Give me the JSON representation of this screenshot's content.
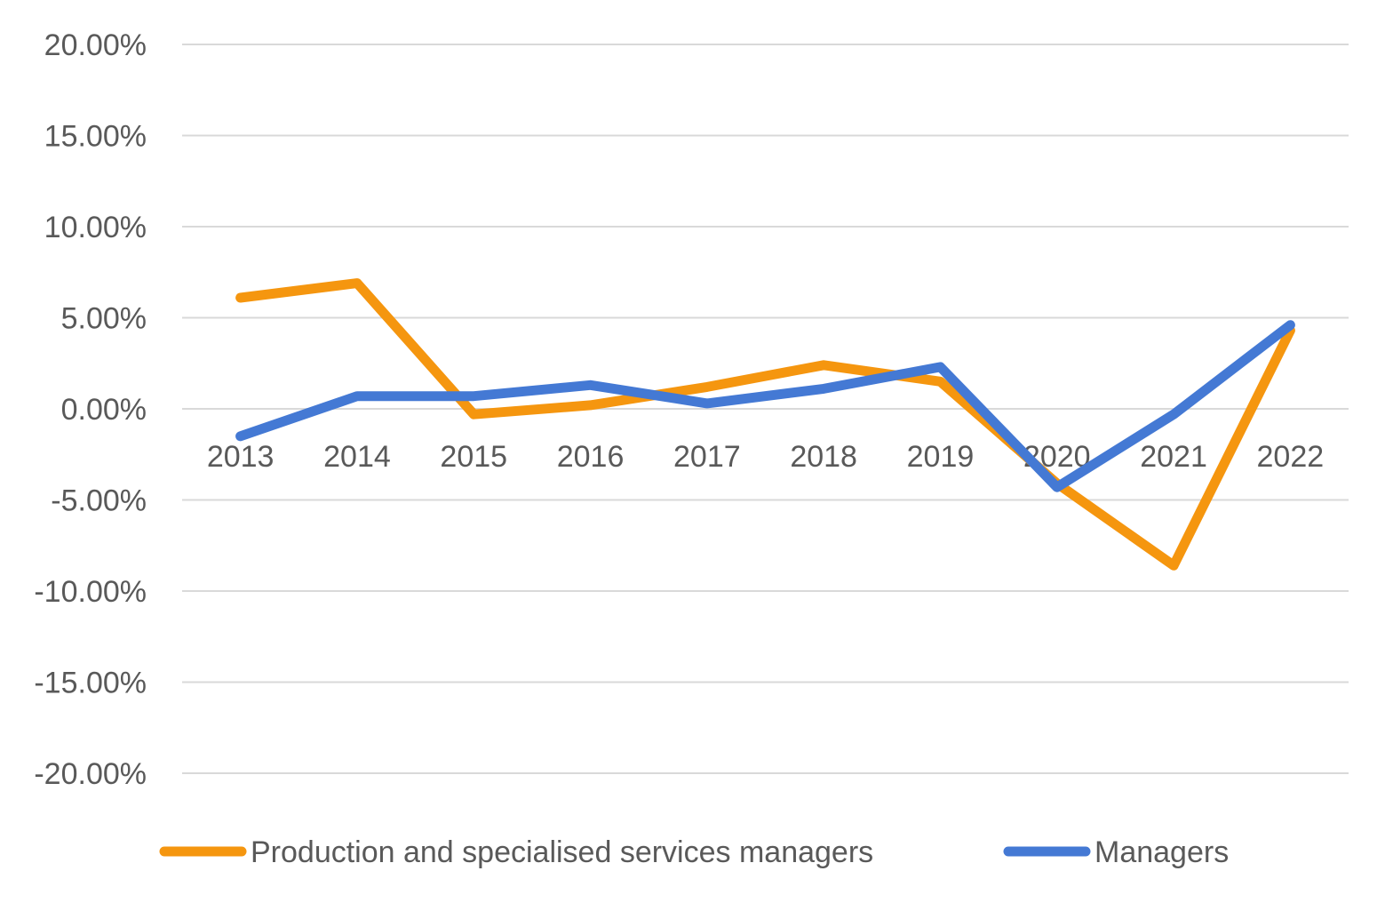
{
  "chart_data": {
    "type": "line",
    "categories": [
      "2013",
      "2014",
      "2015",
      "2016",
      "2017",
      "2018",
      "2019",
      "2020",
      "2021",
      "2022"
    ],
    "series": [
      {
        "name": "Production and specialised services managers",
        "color": "#f5960f",
        "values": [
          6.1,
          6.9,
          -0.3,
          0.2,
          1.2,
          2.4,
          1.5,
          -4.1,
          -8.6,
          4.3
        ]
      },
      {
        "name": "Managers",
        "color": "#4479d4",
        "values": [
          -1.5,
          0.7,
          0.7,
          1.3,
          0.3,
          1.1,
          2.3,
          -4.3,
          -0.3,
          4.6
        ]
      }
    ],
    "y_ticks": [
      "-20.00%",
      "-15.00%",
      "-10.00%",
      "-5.00%",
      "0.00%",
      "5.00%",
      "10.00%",
      "15.00%",
      "20.00%"
    ],
    "ylim": [
      -20,
      20
    ],
    "y_tick_values": [
      -20,
      -15,
      -10,
      -5,
      0,
      5,
      10,
      15,
      20
    ],
    "grid": true,
    "legend_position": "bottom",
    "title": "",
    "xlabel": "",
    "ylabel": ""
  }
}
